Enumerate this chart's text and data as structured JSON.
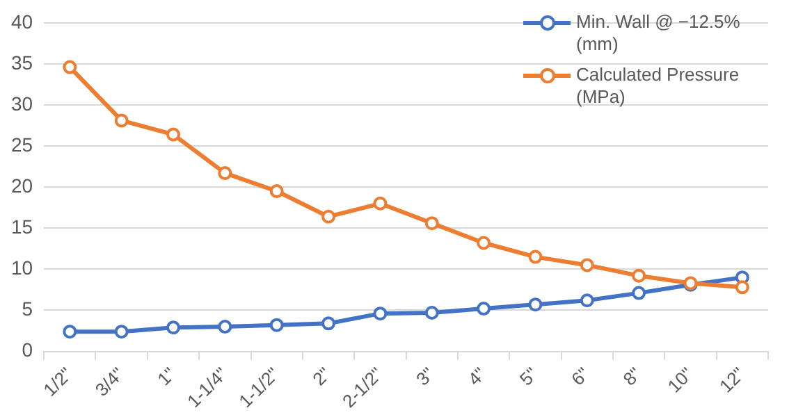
{
  "chart_data": {
    "type": "line",
    "categories": [
      "1/2\"",
      "3/4\"",
      "1\"",
      "1-1/4\"",
      "1-1/2\"",
      "2\"",
      "2-1/2\"",
      "3\"",
      "4\"",
      "5\"",
      "6\"",
      "8\"",
      "10\"",
      "12\""
    ],
    "series": [
      {
        "name": "Min. Wall @ −12.5% (mm)",
        "color": "#4472c4",
        "values": [
          2.4,
          2.4,
          2.9,
          3.0,
          3.2,
          3.4,
          4.6,
          4.7,
          5.2,
          5.7,
          6.2,
          7.1,
          8.1,
          9.0
        ]
      },
      {
        "name": "Calculated Pressure (MPa)",
        "color": "#ed7d31",
        "values": [
          34.6,
          28.1,
          26.4,
          21.7,
          19.5,
          16.4,
          18.0,
          15.6,
          13.2,
          11.5,
          10.5,
          9.2,
          8.3,
          7.8
        ]
      }
    ],
    "ylim": [
      0,
      40
    ],
    "yticks": [
      0,
      5,
      10,
      15,
      20,
      25,
      30,
      35,
      40
    ],
    "grid": "y",
    "legend": "top right",
    "marker": "circle",
    "line_style": "solid"
  }
}
